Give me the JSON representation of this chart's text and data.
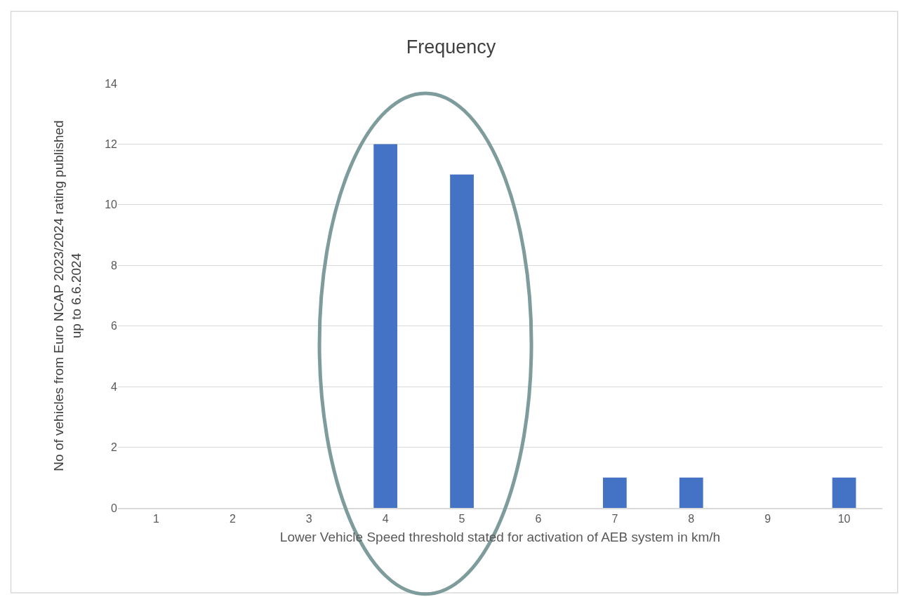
{
  "chart_data": {
    "type": "bar",
    "title": "Frequency",
    "xlabel": "Lower Vehicle Speed threshold stated for activation of AEB system in km/h",
    "ylabel": "No of vehicles from Euro NCAP 2023/2024 rating published up to 6.6.2024",
    "categories": [
      "1",
      "2",
      "3",
      "4",
      "5",
      "6",
      "7",
      "8",
      "9",
      "10"
    ],
    "values": [
      0,
      0,
      0,
      12,
      11,
      0,
      1,
      1,
      0,
      1
    ],
    "color": "#4472c4",
    "ylim": [
      0,
      14
    ],
    "yticks": [
      0,
      2,
      4,
      6,
      8,
      10,
      12,
      14
    ],
    "grid": "y"
  }
}
